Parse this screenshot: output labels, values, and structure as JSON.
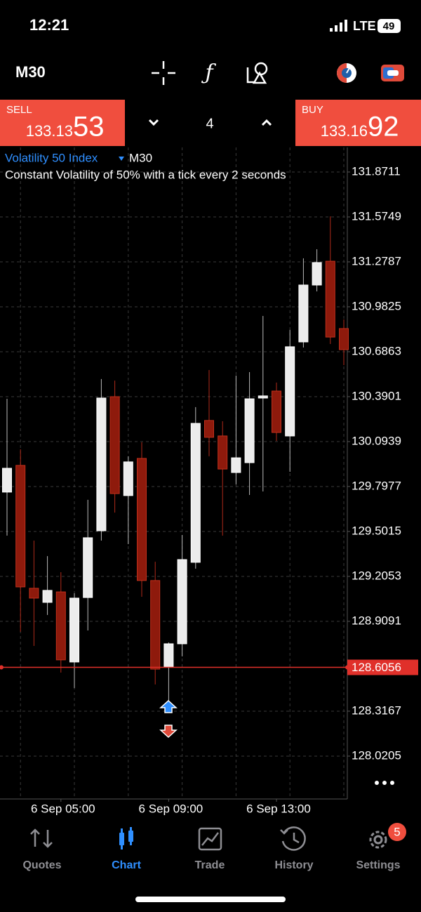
{
  "status": {
    "time": "12:21",
    "network": "LTE",
    "battery": "49"
  },
  "toolbar": {
    "timeframe": "M30"
  },
  "trade": {
    "sell": {
      "label": "SELL",
      "price_main": "133.13",
      "price_big": "53"
    },
    "volume": "4",
    "buy": {
      "label": "BUY",
      "price_main": "133.16",
      "price_big": "92"
    }
  },
  "chart_data": {
    "type": "candlestick",
    "title": "Volatility 50 Index",
    "timeframe": "M30",
    "subtitle": "Constant Volatility of 50% with a tick every 2 seconds",
    "categories": [
      null,
      null,
      null,
      null,
      "6 Sep 05:00",
      null,
      null,
      null,
      null,
      null,
      null,
      null,
      "6 Sep 09:00",
      null,
      null,
      null,
      null,
      null,
      null,
      null,
      "6 Sep 13:00",
      null,
      null,
      null,
      null,
      null
    ],
    "open": [
      129.761,
      129.937,
      129.127,
      129.034,
      129.103,
      128.641,
      129.066,
      129.506,
      130.39,
      129.738,
      129.983,
      129.178,
      128.608,
      128.761,
      129.298,
      130.233,
      130.131,
      129.89,
      129.955,
      130.381,
      130.427,
      130.131,
      130.751,
      131.126,
      131.283,
      130.839
    ],
    "high": [
      130.376,
      130.043,
      129.441,
      129.339,
      129.233,
      129.094,
      129.71,
      130.506,
      130.496,
      129.997,
      130.089,
      129.302,
      128.77,
      129.478,
      130.321,
      130.566,
      130.228,
      130.529,
      130.552,
      130.922,
      130.483,
      130.83,
      131.302,
      131.362,
      131.579,
      130.899
    ],
    "low": [
      129.474,
      128.84,
      128.747,
      128.951,
      128.571,
      128.469,
      128.849,
      129.441,
      129.626,
      129.418,
      129.071,
      128.493,
      128.377,
      128.678,
      129.256,
      129.997,
      129.474,
      129.812,
      129.742,
      129.765,
      130.098,
      129.895,
      130.714,
      131.084,
      130.737,
      130.598
    ],
    "close": [
      129.918,
      129.136,
      129.062,
      129.113,
      128.655,
      129.062,
      129.46,
      130.381,
      129.751,
      129.96,
      129.178,
      128.594,
      128.761,
      129.316,
      130.214,
      130.122,
      129.913,
      129.987,
      130.376,
      130.395,
      130.154,
      130.719,
      131.126,
      131.274,
      130.783,
      130.7
    ],
    "up_color": "#ececec",
    "down_color": "#8e1a0c",
    "ylim": [
      127.738,
      132.033
    ],
    "yticks": [
      131.8711,
      131.5749,
      131.2787,
      130.9825,
      130.6863,
      130.3901,
      130.0939,
      129.7977,
      129.5015,
      129.2053,
      128.9091,
      128.3167,
      128.0205
    ],
    "current_price": 128.6056,
    "price_line_color": "#e0302a",
    "grid": true
  },
  "tabs": [
    {
      "label": "Quotes"
    },
    {
      "label": "Chart"
    },
    {
      "label": "Trade"
    },
    {
      "label": "History"
    },
    {
      "label": "Settings",
      "badge": "5"
    }
  ]
}
